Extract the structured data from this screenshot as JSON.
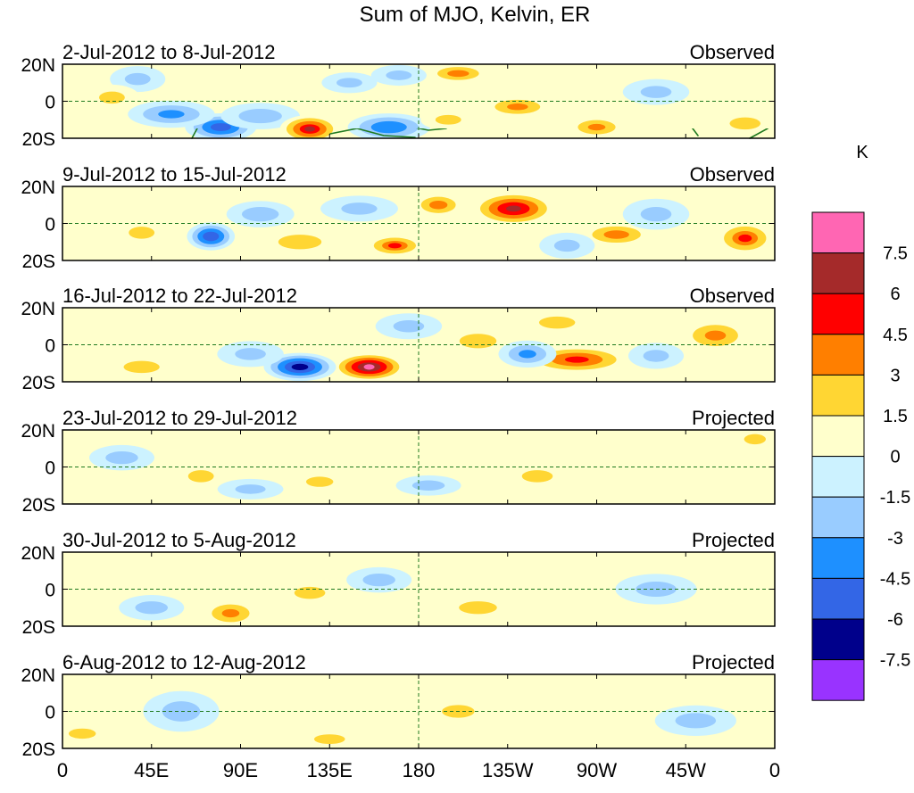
{
  "chart_data": {
    "type": "heatmap",
    "title": "Sum of MJO, Kelvin, ER",
    "colorbar": {
      "unit_label": "K",
      "colors": [
        "#9933ff",
        "#00008b",
        "#3366e6",
        "#1e90ff",
        "#99ccff",
        "#ccf2ff",
        "#ffffcc",
        "#ffd633",
        "#ff7f00",
        "#ff0000",
        "#a52a2a",
        "#ff66b3"
      ],
      "tick_labels": [
        "-7.5",
        "-6",
        "-4.5",
        "-3",
        "-1.5",
        "0",
        "1.5",
        "3",
        "4.5",
        "6",
        "7.5"
      ],
      "levels": [
        -7.5,
        -6,
        -4.5,
        -3,
        -1.5,
        0,
        1.5,
        3,
        4.5,
        6,
        7.5
      ]
    },
    "x_ticks": [
      "0",
      "45E",
      "90E",
      "135E",
      "180",
      "135W",
      "90W",
      "45W",
      "0"
    ],
    "x_tick_lons": [
      0,
      45,
      90,
      135,
      180,
      225,
      270,
      315,
      360
    ],
    "y_ticks": [
      "20N",
      "0",
      "20S"
    ],
    "y_tick_lats": [
      20,
      0,
      -20
    ],
    "xlim": [
      0,
      360
    ],
    "ylim": [
      -20,
      20
    ],
    "panels": [
      {
        "date_range": "2-Jul-2012 to 8-Jul-2012",
        "status": "Observed",
        "anomalies": [
          {
            "lon": 38,
            "lat": 12,
            "value": -2.0,
            "slon": 10,
            "slat": 5
          },
          {
            "lon": 80,
            "lat": -14,
            "value": -5.5,
            "slon": 12,
            "slat": 5
          },
          {
            "lon": 55,
            "lat": -7,
            "value": -3.5,
            "slon": 15,
            "slat": 5
          },
          {
            "lon": 100,
            "lat": -8,
            "value": -2.5,
            "slon": 14,
            "slat": 5
          },
          {
            "lon": 125,
            "lat": -15,
            "value": 6.0,
            "slon": 10,
            "slat": 5
          },
          {
            "lon": 165,
            "lat": -14,
            "value": -4.5,
            "slon": 14,
            "slat": 5
          },
          {
            "lon": 230,
            "lat": -3,
            "value": 3.5,
            "slon": 12,
            "slat": 4
          },
          {
            "lon": 270,
            "lat": -14,
            "value": 3.5,
            "slon": 10,
            "slat": 4
          },
          {
            "lon": 200,
            "lat": 15,
            "value": 3.0,
            "slon": 12,
            "slat": 4
          },
          {
            "lon": 170,
            "lat": 14,
            "value": -2.0,
            "slon": 10,
            "slat": 4
          },
          {
            "lon": 145,
            "lat": 10,
            "value": -2.0,
            "slon": 10,
            "slat": 4
          },
          {
            "lon": 25,
            "lat": 2,
            "value": 2.0,
            "slon": 10,
            "slat": 5
          },
          {
            "lon": 345,
            "lat": -12,
            "value": 2.0,
            "slon": 12,
            "slat": 5
          },
          {
            "lon": 300,
            "lat": 5,
            "value": -2.0,
            "slon": 12,
            "slat": 5
          },
          {
            "lon": 195,
            "lat": -10,
            "value": 2.0,
            "slon": 10,
            "slat": 4
          }
        ]
      },
      {
        "date_range": "9-Jul-2012 to 15-Jul-2012",
        "status": "Observed",
        "anomalies": [
          {
            "lon": 228,
            "lat": 8,
            "value": 6.5,
            "slon": 14,
            "slat": 6
          },
          {
            "lon": 75,
            "lat": -7,
            "value": -6.0,
            "slon": 8,
            "slat": 5
          },
          {
            "lon": 168,
            "lat": -12,
            "value": 4.5,
            "slon": 10,
            "slat": 4
          },
          {
            "lon": 345,
            "lat": -8,
            "value": 4.5,
            "slon": 10,
            "slat": 6
          },
          {
            "lon": 280,
            "lat": -6,
            "value": 3.0,
            "slon": 14,
            "slat": 5
          },
          {
            "lon": 40,
            "lat": -5,
            "value": 2.0,
            "slon": 10,
            "slat": 5
          },
          {
            "lon": 120,
            "lat": -10,
            "value": 2.5,
            "slon": 14,
            "slat": 5
          },
          {
            "lon": 190,
            "lat": 10,
            "value": 3.0,
            "slon": 10,
            "slat": 5
          },
          {
            "lon": 100,
            "lat": 5,
            "value": -2.5,
            "slon": 12,
            "slat": 5
          },
          {
            "lon": 150,
            "lat": 8,
            "value": -2.0,
            "slon": 14,
            "slat": 5
          },
          {
            "lon": 300,
            "lat": 5,
            "value": -2.0,
            "slon": 12,
            "slat": 6
          },
          {
            "lon": 255,
            "lat": -12,
            "value": -2.0,
            "slon": 10,
            "slat": 5
          }
        ]
      },
      {
        "date_range": "16-Jul-2012 to 22-Jul-2012",
        "status": "Observed",
        "anomalies": [
          {
            "lon": 155,
            "lat": -12,
            "value": 8.0,
            "slon": 12,
            "slat": 5
          },
          {
            "lon": 120,
            "lat": -12,
            "value": -7.0,
            "slon": 12,
            "slat": 5
          },
          {
            "lon": 260,
            "lat": -8,
            "value": 5.0,
            "slon": 18,
            "slat": 5
          },
          {
            "lon": 330,
            "lat": 5,
            "value": 3.5,
            "slon": 12,
            "slat": 6
          },
          {
            "lon": 210,
            "lat": 2,
            "value": 2.5,
            "slon": 12,
            "slat": 5
          },
          {
            "lon": 235,
            "lat": -5,
            "value": -3.5,
            "slon": 10,
            "slat": 5
          },
          {
            "lon": 300,
            "lat": -6,
            "value": -2.0,
            "slon": 10,
            "slat": 5
          },
          {
            "lon": 40,
            "lat": -12,
            "value": 2.0,
            "slon": 14,
            "slat": 5
          },
          {
            "lon": 95,
            "lat": -5,
            "value": -2.0,
            "slon": 12,
            "slat": 5
          },
          {
            "lon": 175,
            "lat": 10,
            "value": -2.0,
            "slon": 12,
            "slat": 5
          },
          {
            "lon": 250,
            "lat": 12,
            "value": 2.0,
            "slon": 14,
            "slat": 5
          }
        ]
      },
      {
        "date_range": "23-Jul-2012 to 29-Jul-2012",
        "status": "Projected",
        "anomalies": [
          {
            "lon": 70,
            "lat": -5,
            "value": 2.0,
            "slon": 10,
            "slat": 5
          },
          {
            "lon": 240,
            "lat": -5,
            "value": 2.0,
            "slon": 12,
            "slat": 5
          },
          {
            "lon": 95,
            "lat": -12,
            "value": -1.8,
            "slon": 12,
            "slat": 4
          },
          {
            "lon": 130,
            "lat": -8,
            "value": 1.6,
            "slon": 10,
            "slat": 4
          },
          {
            "lon": 30,
            "lat": 5,
            "value": -1.6,
            "slon": 12,
            "slat": 5
          },
          {
            "lon": 185,
            "lat": -10,
            "value": -1.6,
            "slon": 12,
            "slat": 4
          },
          {
            "lon": 350,
            "lat": 15,
            "value": 1.6,
            "slon": 8,
            "slat": 4
          }
        ]
      },
      {
        "date_range": "30-Jul-2012 to 5-Aug-2012",
        "status": "Projected",
        "anomalies": [
          {
            "lon": 85,
            "lat": -13,
            "value": 3.5,
            "slon": 10,
            "slat": 5
          },
          {
            "lon": 125,
            "lat": -2,
            "value": 2.0,
            "slon": 12,
            "slat": 5
          },
          {
            "lon": 210,
            "lat": -10,
            "value": 1.6,
            "slon": 14,
            "slat": 5
          },
          {
            "lon": 45,
            "lat": -10,
            "value": -1.6,
            "slon": 12,
            "slat": 5
          },
          {
            "lon": 160,
            "lat": 5,
            "value": -1.6,
            "slon": 12,
            "slat": 5
          },
          {
            "lon": 300,
            "lat": 0,
            "value": -1.6,
            "slon": 15,
            "slat": 6
          }
        ]
      },
      {
        "date_range": "6-Aug-2012 to 12-Aug-2012",
        "status": "Projected",
        "anomalies": [
          {
            "lon": 135,
            "lat": -15,
            "value": 2.0,
            "slon": 12,
            "slat": 4
          },
          {
            "lon": 60,
            "lat": 0,
            "value": -1.6,
            "slon": 14,
            "slat": 8
          },
          {
            "lon": 200,
            "lat": 0,
            "value": 1.6,
            "slon": 12,
            "slat": 5
          },
          {
            "lon": 320,
            "lat": -5,
            "value": -1.6,
            "slon": 15,
            "slat": 6
          },
          {
            "lon": 10,
            "lat": -12,
            "value": 1.6,
            "slon": 10,
            "slat": 4
          }
        ]
      }
    ]
  }
}
